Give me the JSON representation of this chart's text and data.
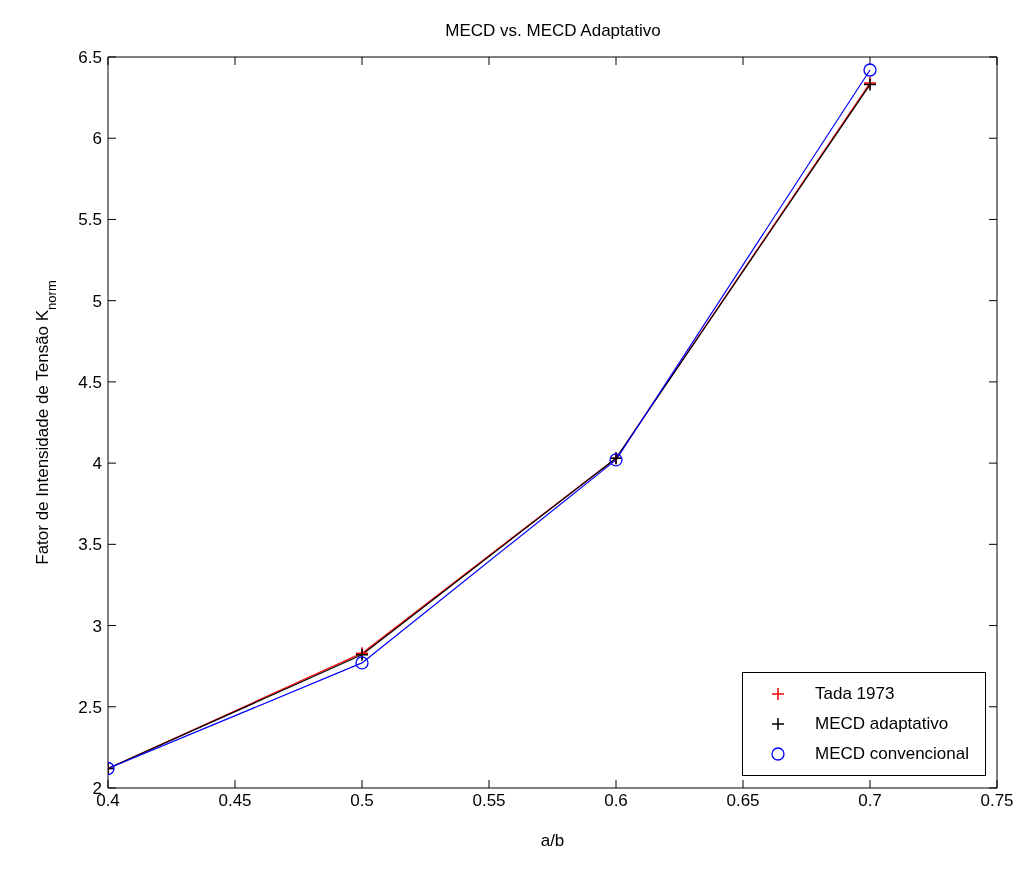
{
  "chart_data": {
    "type": "line",
    "title": "MECD vs. MECD Adaptativo",
    "xlabel": "a/b",
    "ylabel": "Fator de Intensidade de Tensão K$_{norm}$",
    "x": [
      0.4,
      0.5,
      0.6,
      0.7
    ],
    "series": [
      {
        "name": "Tada 1973",
        "color": "#ff0000",
        "marker": "cross",
        "values": [
          2.12,
          2.83,
          4.03,
          6.34
        ]
      },
      {
        "name": "MECD adaptativo",
        "color": "#000000",
        "marker": "cross",
        "values": [
          2.12,
          2.82,
          4.03,
          6.33
        ]
      },
      {
        "name": "MECD convencional",
        "color": "#0000ff",
        "marker": "circle",
        "values": [
          2.12,
          2.77,
          4.02,
          6.42
        ]
      }
    ],
    "xlim": [
      0.4,
      0.75
    ],
    "xticks": [
      0.4,
      0.45,
      0.5,
      0.55,
      0.6,
      0.65,
      0.7,
      0.75
    ],
    "ylim": [
      2,
      6.5
    ],
    "yticks": [
      2,
      2.5,
      3,
      3.5,
      4,
      4.5,
      5,
      5.5,
      6,
      6.5
    ],
    "grid": false,
    "legend": "bottom right",
    "line_style": "solid"
  }
}
